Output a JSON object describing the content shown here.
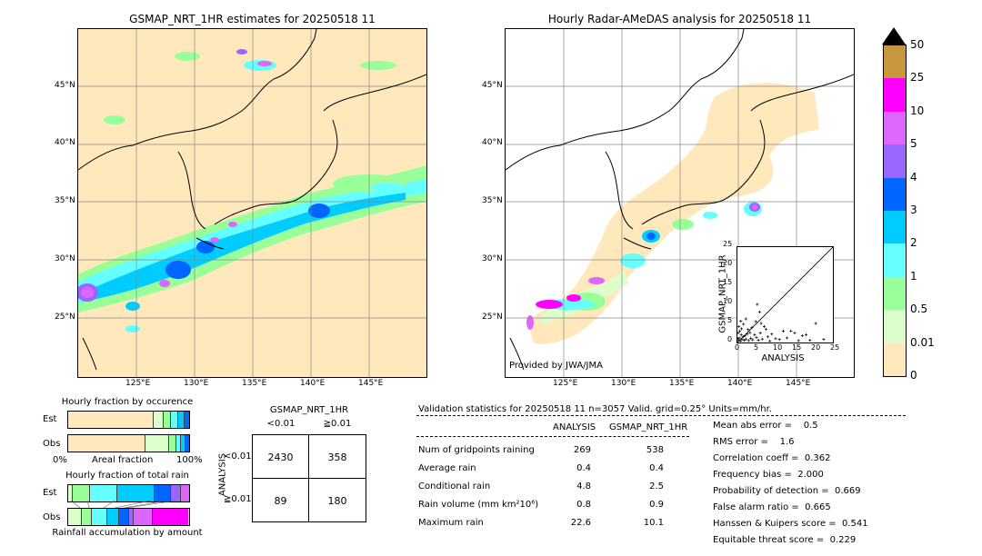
{
  "left_map": {
    "title": "GSMAP_NRT_1HR estimates for 20250518 11",
    "lat_labels": [
      "45°N",
      "40°N",
      "35°N",
      "30°N",
      "25°N"
    ],
    "lon_labels": [
      "125°E",
      "130°E",
      "135°E",
      "140°E",
      "145°E"
    ]
  },
  "right_map": {
    "title": "Hourly Radar-AMeDAS analysis for 20250518 11",
    "lat_labels": [
      "45°N",
      "40°N",
      "35°N",
      "30°N",
      "25°N"
    ],
    "lon_labels": [
      "125°E",
      "130°E",
      "135°E",
      "140°E",
      "145°E"
    ],
    "credit": "Provided by JWA/JMA"
  },
  "colorbar": {
    "labels": [
      "50",
      "25",
      "10",
      "5",
      "4",
      "3",
      "2",
      "1",
      "0.5",
      "0.01",
      "0"
    ],
    "colors": [
      "#c8963c",
      "#ff00ff",
      "#dd66ff",
      "#9966ff",
      "#0066ff",
      "#00ccff",
      "#66ffff",
      "#99ff99",
      "#ddffcc",
      "#ffe8bb"
    ]
  },
  "fraction_occurrence": {
    "title": "Hourly fraction by occurence",
    "row_labels": [
      "Est",
      "Obs"
    ],
    "axis_left": "0%",
    "axis_mid": "Areal fraction",
    "axis_right": "100%"
  },
  "fraction_total": {
    "title": "Hourly fraction of total rain",
    "row_labels": [
      "Est",
      "Obs"
    ],
    "footer": "Rainfall accumulation by amount"
  },
  "contingency": {
    "col_title": "GSMAP_NRT_1HR",
    "col_labels": [
      "<0.01",
      "≧0.01"
    ],
    "row_title": "ANALYSIS",
    "row_labels": [
      "<0.01",
      "≧0.01"
    ],
    "cells": [
      "2430",
      "358",
      "89",
      "180"
    ]
  },
  "validation": {
    "header": "Validation statistics for 20250518 11  n=3057 Valid. grid=0.25° Units=mm/hr.",
    "col_analysis": "ANALYSIS",
    "col_gsmap": "GSMAP_NRT_1HR",
    "rows": [
      {
        "label": "Num of gridpoints raining",
        "analysis": "269",
        "gsmap": "538"
      },
      {
        "label": "Average rain",
        "analysis": "0.4",
        "gsmap": "0.4"
      },
      {
        "label": "Conditional rain",
        "analysis": "4.8",
        "gsmap": "2.5"
      },
      {
        "label": "Rain volume (mm km²10⁶)",
        "analysis": "0.8",
        "gsmap": "0.9"
      },
      {
        "label": "Maximum rain",
        "analysis": "22.6",
        "gsmap": "10.1"
      }
    ],
    "scores": [
      "Mean abs error =    0.5",
      "RMS error =    1.6",
      "Correlation coeff =  0.362",
      "Frequency bias =  2.000",
      "Probability of detection =  0.669",
      "False alarm ratio =  0.665",
      "Hanssen & Kuipers score =  0.541",
      "Equitable threat score =  0.229"
    ]
  },
  "chart_data": {
    "type": "scatter",
    "xlabel": "ANALYSIS",
    "ylabel": "GSMAP_NRT_1HR",
    "xlim": [
      0,
      25
    ],
    "ylim": [
      0,
      25
    ],
    "ticks": [
      "0",
      "5",
      "10",
      "15",
      "20",
      "25"
    ],
    "points": [
      [
        0.3,
        0.5
      ],
      [
        0.5,
        1.2
      ],
      [
        0.8,
        0.4
      ],
      [
        1.0,
        2.0
      ],
      [
        1.2,
        0.8
      ],
      [
        1.5,
        1.5
      ],
      [
        0.2,
        2.5
      ],
      [
        0.6,
        3.0
      ],
      [
        1.8,
        0.6
      ],
      [
        2.0,
        1.8
      ],
      [
        2.3,
        0.9
      ],
      [
        2.6,
        2.2
      ],
      [
        3.0,
        0.5
      ],
      [
        0.4,
        4.2
      ],
      [
        1.1,
        3.6
      ],
      [
        3.5,
        1.1
      ],
      [
        4.0,
        0.7
      ],
      [
        4.5,
        2.0
      ],
      [
        5.0,
        1.3
      ],
      [
        5.5,
        0.6
      ],
      [
        6.0,
        2.5
      ],
      [
        6.5,
        0.9
      ],
      [
        7.0,
        4.2
      ],
      [
        7.5,
        3.5
      ],
      [
        8.0,
        1.5
      ],
      [
        8.5,
        0.4
      ],
      [
        9.0,
        2.2
      ],
      [
        5.2,
        10.0
      ],
      [
        5.8,
        8.0
      ],
      [
        4.8,
        5.5
      ],
      [
        6.2,
        5.0
      ],
      [
        10.0,
        1.0
      ],
      [
        11.0,
        0.8
      ],
      [
        12.0,
        3.0
      ],
      [
        13.0,
        1.2
      ],
      [
        14.0,
        3.0
      ],
      [
        15.0,
        2.5
      ],
      [
        16.0,
        0.5
      ],
      [
        17.0,
        1.8
      ],
      [
        18.0,
        2.0
      ],
      [
        19.0,
        0.6
      ],
      [
        20.5,
        5.0
      ],
      [
        22.6,
        0.8
      ],
      [
        2.8,
        3.4
      ],
      [
        3.3,
        2.6
      ],
      [
        1.6,
        4.8
      ],
      [
        0.9,
        5.6
      ],
      [
        2.2,
        6.2
      ],
      [
        3.8,
        3.9
      ],
      [
        0.1,
        1.0
      ]
    ]
  }
}
